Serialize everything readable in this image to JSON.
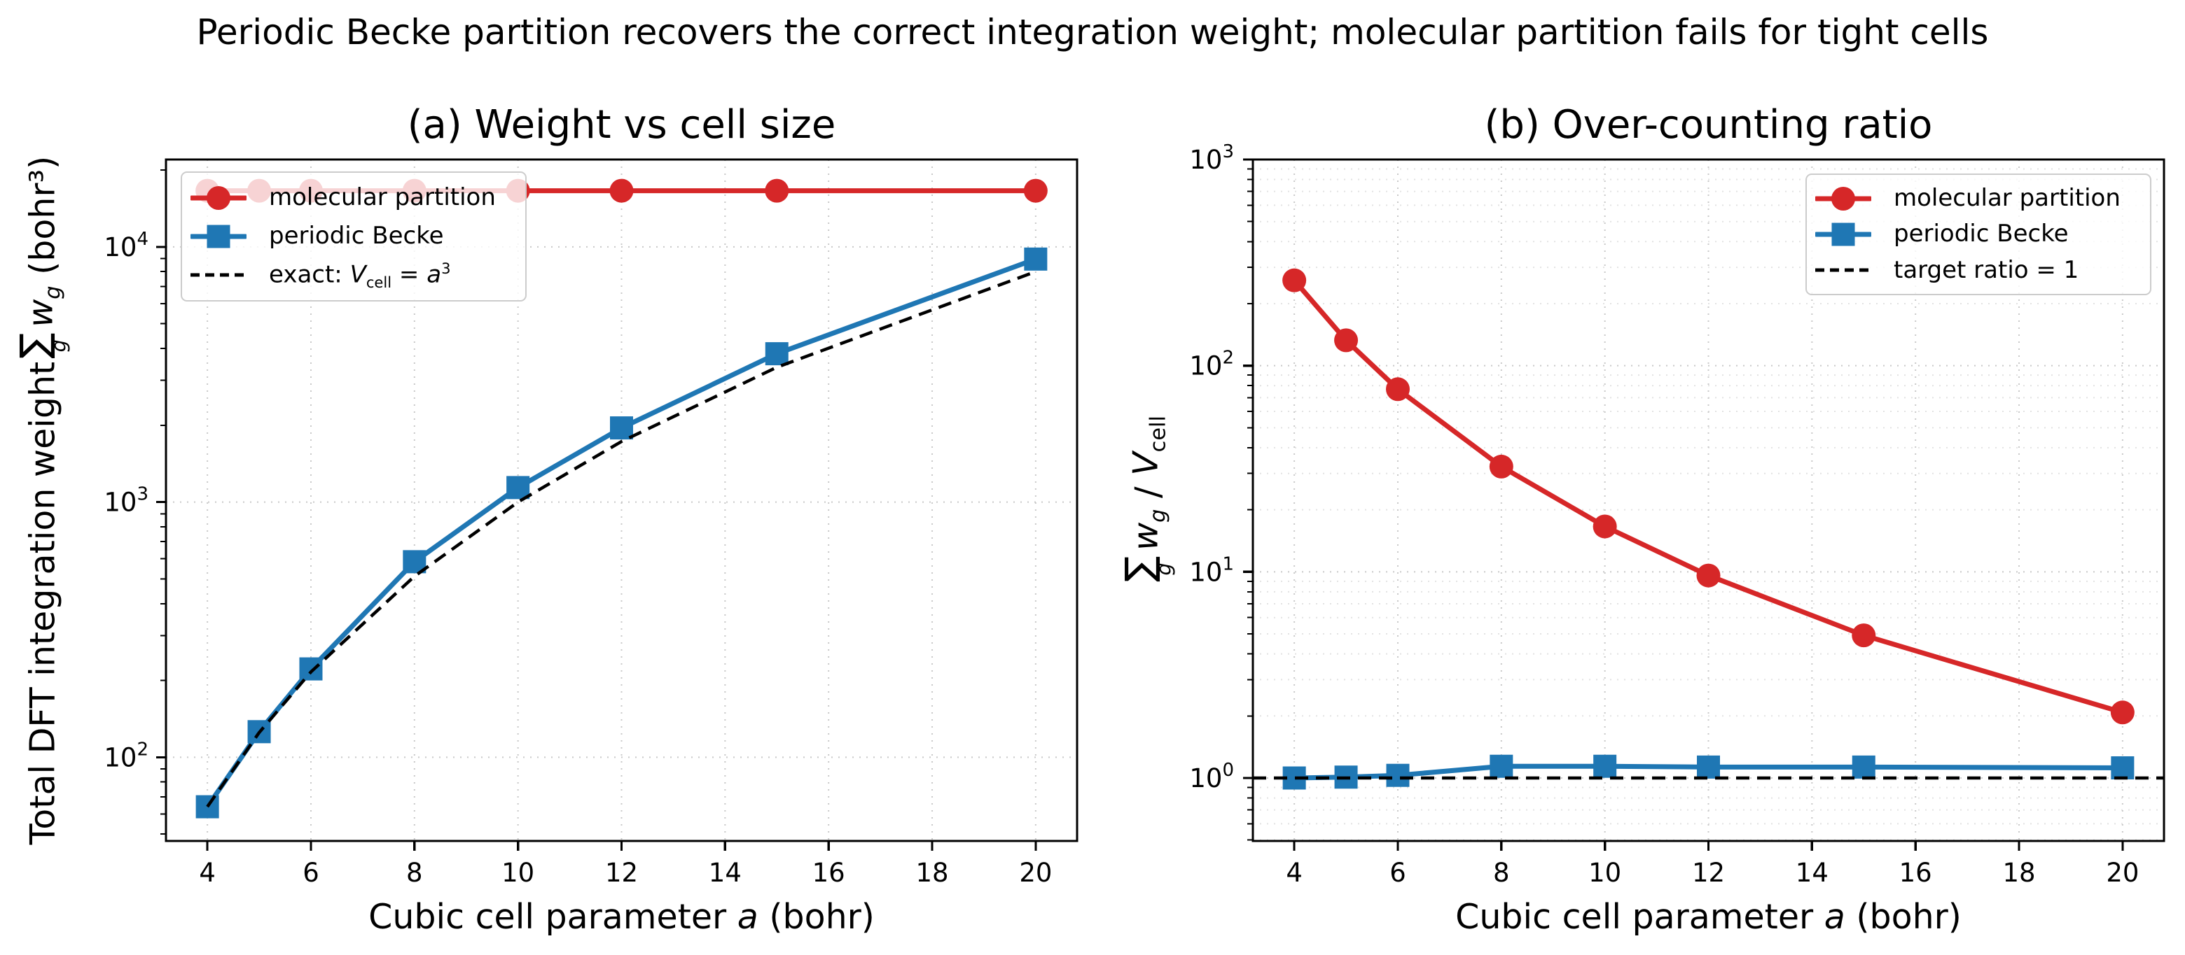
{
  "suptitle": "Periodic Becke partition recovers the correct integration weight; molecular partition fails for tight cells",
  "colors": {
    "red": "#d62728",
    "blue": "#1f77b4",
    "black": "#000000",
    "grid_major": "#c8c8c8",
    "grid_minor": "#e2e2e2",
    "legend_border": "#cccccc",
    "text": "#000000"
  },
  "panels": [
    {
      "title": "(a) Weight vs cell size",
      "xlabel": {
        "pre": "Cubic cell parameter ",
        "var": "a",
        "post": " (bohr)"
      },
      "ylabel": {
        "pre": "Total DFT integration weight",
        "sum": "∑",
        "sumsub": "g",
        "w": "w",
        "wsub": "g",
        "post": " (bohr³)"
      },
      "legend": {
        "item1": "molecular partition",
        "item2": "periodic Becke",
        "item3": {
          "pre": "exact: ",
          "V": "V",
          "Vsub": "cell",
          "eq": " = ",
          "a": "a",
          "sup": "3"
        }
      }
    },
    {
      "title": "(b) Over-counting ratio",
      "xlabel": {
        "pre": "Cubic cell parameter ",
        "var": "a",
        "post": " (bohr)"
      },
      "ylabel": {
        "sum": "∑",
        "sumsub": "g",
        "w": "w",
        "wsub": "g",
        "mid": " / ",
        "V": "V",
        "Vsub": "cell"
      },
      "legend": {
        "item1": "molecular partition",
        "item2": "periodic Becke",
        "item3": {
          "pre": "target ratio = 1"
        }
      }
    }
  ],
  "chart_data": [
    {
      "type": "line",
      "title": "(a) Weight vs cell size",
      "xlabel": "Cubic cell parameter a (bohr)",
      "ylabel": "Total DFT integration weight sum_g w_g (bohr^3)",
      "x": [
        4,
        5,
        6,
        8,
        10,
        12,
        15,
        20
      ],
      "series": [
        {
          "name": "molecular partition",
          "color": "red",
          "marker": "circle",
          "linestyle": "solid",
          "values": [
            16600,
            16600,
            16600,
            16600,
            16600,
            16600,
            16600,
            16600
          ]
        },
        {
          "name": "periodic Becke",
          "color": "blue",
          "marker": "square",
          "linestyle": "solid",
          "values": [
            64,
            126,
            222,
            584,
            1140,
            1953,
            3814,
            8960
          ]
        },
        {
          "name": "exact: V_cell = a^3",
          "color": "black",
          "marker": "none",
          "linestyle": "dashed",
          "values": [
            64,
            125,
            216,
            512,
            1000,
            1728,
            3375,
            8000
          ]
        }
      ],
      "xlim": [
        3.2,
        20.8
      ],
      "ylim": [
        47,
        22000
      ],
      "yscale": "log",
      "xticks": [
        4,
        6,
        8,
        10,
        12,
        14,
        16,
        18,
        20
      ],
      "ytick_exponents": [
        2,
        3,
        4
      ],
      "grid": "major",
      "legend_position": "upper left"
    },
    {
      "type": "line",
      "title": "(b) Over-counting ratio",
      "xlabel": "Cubic cell parameter a (bohr)",
      "ylabel": "sum_g w_g / V_cell",
      "x": [
        4,
        5,
        6,
        8,
        10,
        12,
        15,
        20
      ],
      "series": [
        {
          "name": "molecular partition",
          "color": "red",
          "marker": "circle",
          "linestyle": "solid",
          "values": [
            259.4,
            132.8,
            76.9,
            32.4,
            16.6,
            9.6,
            4.92,
            2.08
          ]
        },
        {
          "name": "periodic Becke",
          "color": "blue",
          "marker": "square",
          "linestyle": "solid",
          "values": [
            1.0,
            1.01,
            1.03,
            1.14,
            1.14,
            1.13,
            1.13,
            1.12
          ]
        },
        {
          "name": "target ratio = 1",
          "color": "black",
          "marker": "none",
          "linestyle": "dashed",
          "full_width": true,
          "values": [
            1,
            1,
            1,
            1,
            1,
            1,
            1,
            1
          ]
        }
      ],
      "xlim": [
        3.2,
        20.8
      ],
      "ylim": [
        0.495,
        1000
      ],
      "yscale": "log",
      "xticks": [
        4,
        6,
        8,
        10,
        12,
        14,
        16,
        18,
        20
      ],
      "ytick_exponents": [
        0,
        1,
        2,
        3
      ],
      "grid": "both",
      "legend_position": "upper right"
    }
  ]
}
